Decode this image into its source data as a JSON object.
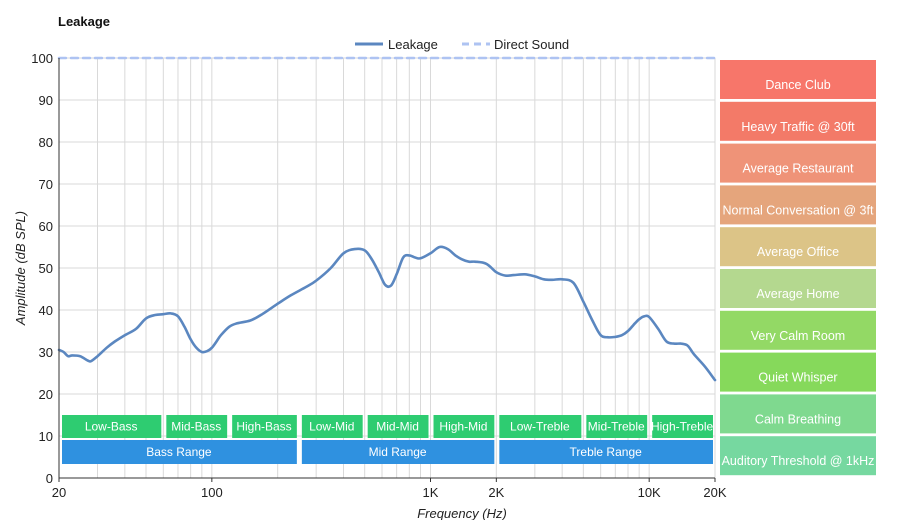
{
  "chart_data": {
    "type": "line",
    "title": "Leakage",
    "xlabel": "Frequency (Hz)",
    "ylabel": "Amplitude (dB SPL)",
    "x_scale": "log",
    "xlim": [
      20,
      20000
    ],
    "ylim": [
      0,
      100
    ],
    "grid": true,
    "legend": "top-center",
    "x_ticks": [
      {
        "value": 20,
        "label": "20"
      },
      {
        "value": 100,
        "label": "100"
      },
      {
        "value": 1000,
        "label": "1K"
      },
      {
        "value": 2000,
        "label": "2K"
      },
      {
        "value": 10000,
        "label": "10K"
      },
      {
        "value": 20000,
        "label": "20K"
      }
    ],
    "y_ticks": [
      0,
      10,
      20,
      30,
      40,
      50,
      60,
      70,
      80,
      90,
      100
    ],
    "series": [
      {
        "name": "Leakage",
        "color": "#5b87c0",
        "style": "solid",
        "x": [
          20,
          21,
          22,
          23,
          25,
          27,
          28,
          30,
          33,
          36,
          40,
          45,
          50,
          55,
          60,
          65,
          70,
          75,
          80,
          85,
          90,
          95,
          100,
          105,
          110,
          120,
          130,
          150,
          170,
          200,
          230,
          270,
          300,
          350,
          400,
          450,
          500,
          540,
          580,
          620,
          660,
          700,
          750,
          800,
          850,
          900,
          1000,
          1100,
          1200,
          1300,
          1400,
          1500,
          1600,
          1800,
          2000,
          2200,
          2400,
          2700,
          3000,
          3300,
          3600,
          4000,
          4500,
          5000,
          5500,
          6000,
          6500,
          7000,
          7500,
          8000,
          8500,
          9000,
          9500,
          10000,
          11000,
          12000,
          13000,
          14000,
          15000,
          16000,
          18000,
          20000
        ],
        "y": [
          30.5,
          30.0,
          29.0,
          29.2,
          29.0,
          28.0,
          27.8,
          29.0,
          31.0,
          32.5,
          34.0,
          35.5,
          38.0,
          38.8,
          39.0,
          39.2,
          38.5,
          36.0,
          33.0,
          31.0,
          30.0,
          30.2,
          31.0,
          32.5,
          34.0,
          36.0,
          36.8,
          37.5,
          39.0,
          41.5,
          43.5,
          45.5,
          47.0,
          50.0,
          53.5,
          54.5,
          54.2,
          52.0,
          49.0,
          46.0,
          45.8,
          48.5,
          52.5,
          53.0,
          52.5,
          52.3,
          53.5,
          55.0,
          54.5,
          53.0,
          52.0,
          51.5,
          51.5,
          51.0,
          49.0,
          48.2,
          48.3,
          48.5,
          48.0,
          47.3,
          47.2,
          47.3,
          46.5,
          42.0,
          37.5,
          34.0,
          33.5,
          33.6,
          34.0,
          35.0,
          36.5,
          37.8,
          38.5,
          38.3,
          35.5,
          32.5,
          32.0,
          32.0,
          31.5,
          29.5,
          26.5,
          23.3
        ]
      },
      {
        "name": "Direct Sound",
        "color": "#aec3f2",
        "style": "dashed",
        "x": [
          20,
          20000
        ],
        "y": [
          100,
          100
        ]
      }
    ],
    "frequency_bands": [
      {
        "label": "Low-Bass",
        "from": 20,
        "to": 60,
        "row": 0
      },
      {
        "label": "Mid-Bass",
        "from": 60,
        "to": 120,
        "row": 0
      },
      {
        "label": "High-Bass",
        "from": 120,
        "to": 250,
        "row": 0
      },
      {
        "label": "Low-Mid",
        "from": 250,
        "to": 500,
        "row": 0
      },
      {
        "label": "Mid-Mid",
        "from": 500,
        "to": 1000,
        "row": 0
      },
      {
        "label": "High-Mid",
        "from": 1000,
        "to": 2000,
        "row": 0
      },
      {
        "label": "Low-Treble",
        "from": 2000,
        "to": 5000,
        "row": 0
      },
      {
        "label": "Mid-Treble",
        "from": 5000,
        "to": 10000,
        "row": 0
      },
      {
        "label": "High-Treble",
        "from": 10000,
        "to": 20000,
        "row": 0
      },
      {
        "label": "Bass Range",
        "from": 20,
        "to": 250,
        "row": 1
      },
      {
        "label": "Mid Range",
        "from": 250,
        "to": 2000,
        "row": 1
      },
      {
        "label": "Treble Range",
        "from": 2000,
        "to": 20000,
        "row": 1
      }
    ],
    "band_colors": {
      "row0": "#2ecc71",
      "row1": "#2f91e0"
    },
    "environment_scale": [
      {
        "label": "Dance Club",
        "color": "#f7766a"
      },
      {
        "label": "Heavy Traffic @ 30ft",
        "color": "#f37a68"
      },
      {
        "label": "Average Restaurant",
        "color": "#ef9378"
      },
      {
        "label": "Normal Conversation @ 3ft",
        "color": "#e5a57c"
      },
      {
        "label": "Average Office",
        "color": "#dcc487"
      },
      {
        "label": "Average Home",
        "color": "#b4d88f"
      },
      {
        "label": "Very Calm Room",
        "color": "#93d965"
      },
      {
        "label": "Quiet Whisper",
        "color": "#86d95b"
      },
      {
        "label": "Calm Breathing",
        "color": "#7fd98f"
      },
      {
        "label": "Auditory Threshold @ 1kHz",
        "color": "#76d8a0"
      }
    ]
  }
}
